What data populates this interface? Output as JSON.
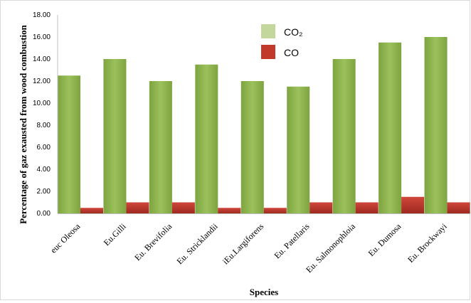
{
  "chart_data": {
    "type": "bar",
    "title": "",
    "xlabel": "Species",
    "ylabel": "Percentage of gaz exausted from wood combustion",
    "ylim": [
      0,
      18
    ],
    "y_ticks": [
      "0.00",
      "2.00",
      "4.00",
      "6.00",
      "8.00",
      "10.00",
      "12.00",
      "14.00",
      "16.00",
      "18.00"
    ],
    "categories": [
      "euc Oleosa",
      "Eu.Gilli",
      "Eu. Brevifolia",
      "Eu. Stricklandii",
      "iEu.Largiforens",
      "Eu. Patellaris",
      "Eu. Salmonophloia",
      "Eu. Dumosa",
      "Eu. Brockwayi"
    ],
    "series": [
      {
        "name": "CO₂",
        "color": "#8db34f",
        "values": [
          12.5,
          14.0,
          12.0,
          13.5,
          12.0,
          11.5,
          14.0,
          15.5,
          16.0
        ]
      },
      {
        "name": "CO",
        "color": "#c0392b",
        "values": [
          0.5,
          1.0,
          1.0,
          0.5,
          0.5,
          1.0,
          1.0,
          1.5,
          1.0
        ]
      }
    ],
    "grid": false,
    "legend_position": "top-right"
  }
}
